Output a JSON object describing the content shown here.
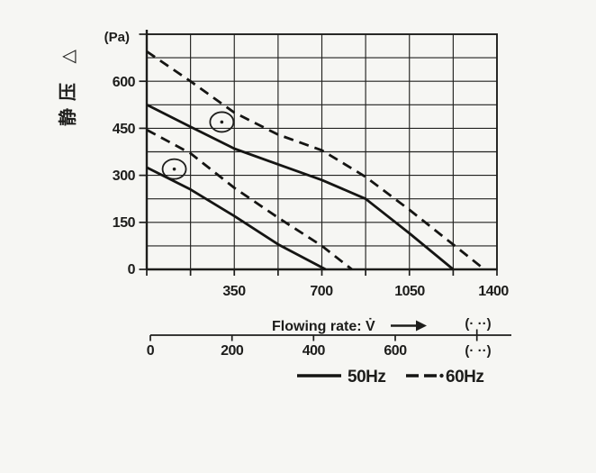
{
  "colors": {
    "ink": "#1d1d1b",
    "paper": "#f6f6f3"
  },
  "y_axis": {
    "label": "静压 △",
    "unit": "(Pa)",
    "tick_labels": [
      "600",
      "450",
      "300",
      "150",
      "0"
    ]
  },
  "x_axis": {
    "tick_labels": [
      "350",
      "700",
      "1050",
      "1400"
    ]
  },
  "flow_scale": {
    "title": "Flowing rate: V̇",
    "unit_top": "(· ··)",
    "unit_bottom": "(· ··)",
    "tick_labels": [
      "0",
      "200",
      "400",
      "600"
    ]
  },
  "legend": {
    "items": [
      {
        "label": "50Hz",
        "style": "solid"
      },
      {
        "label": "60Hz",
        "style": "dashed"
      }
    ]
  },
  "chart_data": {
    "type": "line",
    "title": "",
    "xlabel": "Flowing rate: V̇",
    "ylabel": "静压 △ (Pa)",
    "xlim": [
      0,
      1400
    ],
    "ylim": [
      0,
      750
    ],
    "grid": true,
    "x_grid_step": 175,
    "y_grid_step": 75,
    "x_tick_labels": [
      350,
      700,
      1050,
      1400
    ],
    "y_tick_labels": [
      0,
      150,
      300,
      450,
      600
    ],
    "legend_position": "bottom",
    "series": [
      {
        "name": "50Hz upper curve",
        "line_style": "solid",
        "points": [
          [
            0,
            525
          ],
          [
            175,
            455
          ],
          [
            350,
            385
          ],
          [
            525,
            335
          ],
          [
            700,
            285
          ],
          [
            875,
            225
          ],
          [
            1050,
            115
          ],
          [
            1225,
            0
          ]
        ]
      },
      {
        "name": "60Hz upper curve",
        "line_style": "dashed",
        "points": [
          [
            0,
            695
          ],
          [
            175,
            600
          ],
          [
            350,
            500
          ],
          [
            525,
            430
          ],
          [
            700,
            380
          ],
          [
            875,
            295
          ],
          [
            1050,
            190
          ],
          [
            1200,
            95
          ],
          [
            1350,
            0
          ]
        ]
      },
      {
        "name": "50Hz lower curve",
        "line_style": "solid",
        "points": [
          [
            0,
            325
          ],
          [
            175,
            255
          ],
          [
            350,
            170
          ],
          [
            525,
            80
          ],
          [
            715,
            0
          ]
        ]
      },
      {
        "name": "60Hz lower curve",
        "line_style": "dashed",
        "points": [
          [
            0,
            445
          ],
          [
            175,
            370
          ],
          [
            350,
            260
          ],
          [
            525,
            165
          ],
          [
            700,
            75
          ],
          [
            820,
            0
          ]
        ]
      }
    ],
    "operating_point_markers": [
      {
        "x": 300,
        "y": 470
      },
      {
        "x": 110,
        "y": 320
      }
    ],
    "secondary_x_scale": {
      "tick_labels": [
        0,
        200,
        400,
        600
      ]
    }
  }
}
